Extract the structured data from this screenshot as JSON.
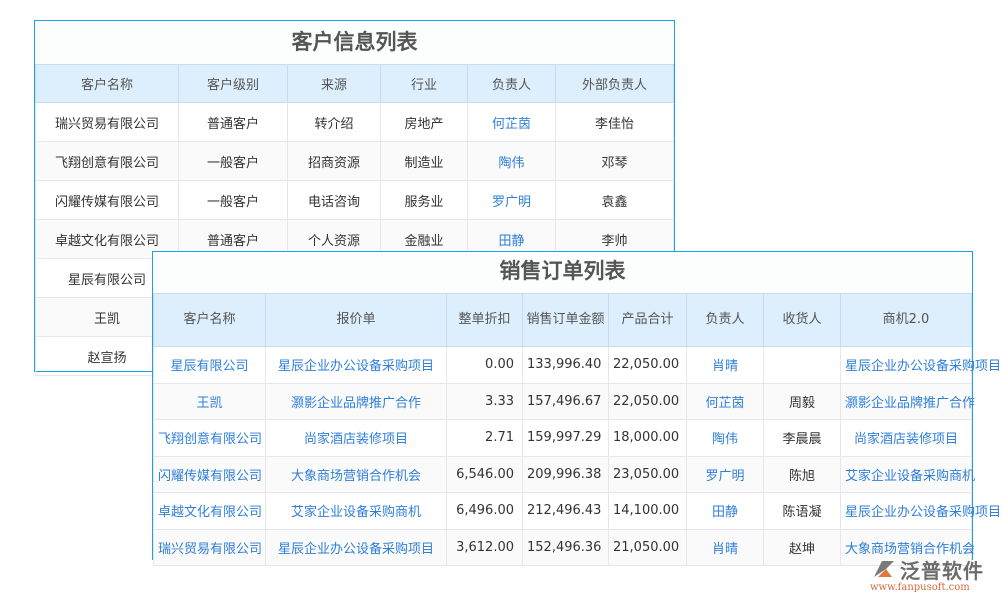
{
  "customer_table": {
    "title": "客户信息列表",
    "headers": [
      "客户名称",
      "客户级别",
      "来源",
      "行业",
      "负责人",
      "外部负责人"
    ],
    "rows": [
      [
        "瑞兴贸易有限公司",
        "普通客户",
        "转介绍",
        "房地产",
        "何芷茵",
        "李佳怡"
      ],
      [
        "飞翔创意有限公司",
        "一般客户",
        "招商资源",
        "制造业",
        "陶伟",
        "邓琴"
      ],
      [
        "闪耀传媒有限公司",
        "一般客户",
        "电话咨询",
        "服务业",
        "罗广明",
        "袁鑫"
      ],
      [
        "卓越文化有限公司",
        "普通客户",
        "个人资源",
        "金融业",
        "田静",
        "李帅"
      ],
      [
        "星辰有限公司",
        "",
        "",
        "",
        "",
        ""
      ],
      [
        "王凯",
        "",
        "",
        "",
        "",
        ""
      ],
      [
        "赵宣扬",
        "",
        "",
        "",
        "",
        ""
      ]
    ]
  },
  "order_table": {
    "title": "销售订单列表",
    "headers": [
      "客户名称",
      "报价单",
      "整单折扣",
      "销售订单金额",
      "产品合计",
      "负责人",
      "收货人",
      "商机2.0"
    ],
    "rows": [
      [
        "星辰有限公司",
        "星辰企业办公设备采购项目",
        "0.00",
        "133,996.40",
        "22,050.00",
        "肖晴",
        "",
        "星辰企业办公设备采购项目"
      ],
      [
        "王凯",
        "灏影企业品牌推广合作",
        "3.33",
        "157,496.67",
        "22,050.00",
        "何芷茵",
        "周毅",
        "灏影企业品牌推广合作"
      ],
      [
        "飞翔创意有限公司",
        "尚家酒店装修项目",
        "2.71",
        "159,997.29",
        "18,000.00",
        "陶伟",
        "李晨晨",
        "尚家酒店装修项目"
      ],
      [
        "闪耀传媒有限公司",
        "大象商场营销合作机会",
        "6,546.00",
        "209,996.38",
        "23,050.00",
        "罗广明",
        "陈旭",
        "艾家企业设备采购商机"
      ],
      [
        "卓越文化有限公司",
        "艾家企业设备采购商机",
        "6,496.00",
        "212,496.43",
        "14,100.00",
        "田静",
        "陈语凝",
        "星辰企业办公设备采购项目"
      ],
      [
        "瑞兴贸易有限公司",
        "星辰企业办公设备采购项目",
        "3,612.00",
        "152,496.36",
        "21,050.00",
        "肖晴",
        "赵坤",
        "大象商场营销合作机会"
      ]
    ]
  },
  "logo": {
    "name": "泛普软件",
    "url": "www.fanpusoft.com"
  }
}
